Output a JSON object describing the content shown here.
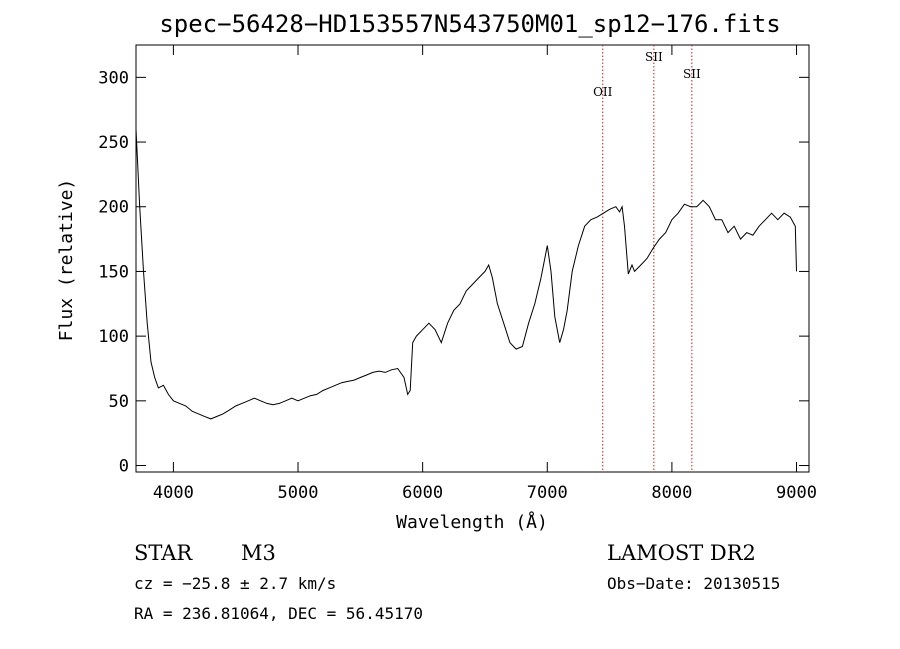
{
  "chart_data": {
    "type": "line",
    "title": "spec−56428−HD153557N543750M01_sp12−176.fits",
    "xlabel": "Wavelength (Å)",
    "ylabel": "Flux (relative)",
    "xlim": [
      3700,
      9100
    ],
    "ylim": [
      -5,
      325
    ],
    "x_ticks": [
      4000,
      5000,
      6000,
      7000,
      8000,
      9000
    ],
    "y_ticks": [
      0,
      50,
      100,
      150,
      200,
      250,
      300
    ],
    "grid": false,
    "series_color": "#000000",
    "line_marker_color": "#b22222",
    "spectral_lines": [
      {
        "label": "OII",
        "wavelength": 7445
      },
      {
        "label": "SII",
        "wavelength": 7855
      },
      {
        "label": "SII",
        "wavelength": 8160
      }
    ],
    "series": [
      {
        "x": [
          3700,
          3730,
          3760,
          3790,
          3820,
          3850,
          3880,
          3920,
          3960,
          4000,
          4050,
          4100,
          4150,
          4200,
          4250,
          4300,
          4350,
          4400,
          4450,
          4500,
          4550,
          4600,
          4650,
          4700,
          4750,
          4800,
          4850,
          4900,
          4950,
          5000,
          5050,
          5100,
          5150,
          5200,
          5250,
          5300,
          5350,
          5400,
          5450,
          5500,
          5550,
          5600,
          5650,
          5700,
          5750,
          5800,
          5850,
          5880,
          5900,
          5920,
          5950,
          6000,
          6050,
          6100,
          6150,
          6200,
          6250,
          6300,
          6350,
          6400,
          6450,
          6500,
          6530,
          6560,
          6600,
          6650,
          6700,
          6750,
          6800,
          6850,
          6900,
          6950,
          7000,
          7030,
          7060,
          7100,
          7130,
          7160,
          7200,
          7250,
          7300,
          7350,
          7400,
          7450,
          7500,
          7550,
          7580,
          7600,
          7620,
          7650,
          7680,
          7700,
          7750,
          7800,
          7850,
          7900,
          7950,
          8000,
          8050,
          8100,
          8150,
          8200,
          8250,
          8300,
          8350,
          8400,
          8450,
          8500,
          8550,
          8600,
          8650,
          8700,
          8750,
          8800,
          8850,
          8900,
          8950,
          8990,
          9000
        ],
        "y": [
          260,
          200,
          150,
          110,
          80,
          68,
          60,
          62,
          55,
          50,
          48,
          46,
          42,
          40,
          38,
          36,
          38,
          40,
          43,
          46,
          48,
          50,
          52,
          50,
          48,
          47,
          48,
          50,
          52,
          50,
          52,
          54,
          55,
          58,
          60,
          62,
          64,
          65,
          66,
          68,
          70,
          72,
          73,
          72,
          74,
          75,
          68,
          55,
          58,
          95,
          100,
          105,
          110,
          105,
          95,
          110,
          120,
          125,
          135,
          140,
          145,
          150,
          155,
          145,
          125,
          110,
          95,
          90,
          92,
          110,
          125,
          145,
          170,
          150,
          115,
          95,
          105,
          120,
          150,
          170,
          185,
          190,
          192,
          195,
          198,
          200,
          196,
          200,
          185,
          148,
          155,
          150,
          155,
          160,
          168,
          175,
          180,
          190,
          195,
          202,
          200,
          200,
          205,
          200,
          190,
          190,
          180,
          185,
          175,
          180,
          178,
          185,
          190,
          195,
          190,
          195,
          192,
          185,
          150
        ]
      }
    ]
  },
  "info": {
    "object_class": "STAR",
    "subclass": "M3",
    "survey": "LAMOST DR2",
    "cz": "cz = −25.8 ± 2.7 km/s",
    "obs_date": "Obs−Date: 20130515",
    "radec": "RA = 236.81064, DEC =  56.45170"
  }
}
